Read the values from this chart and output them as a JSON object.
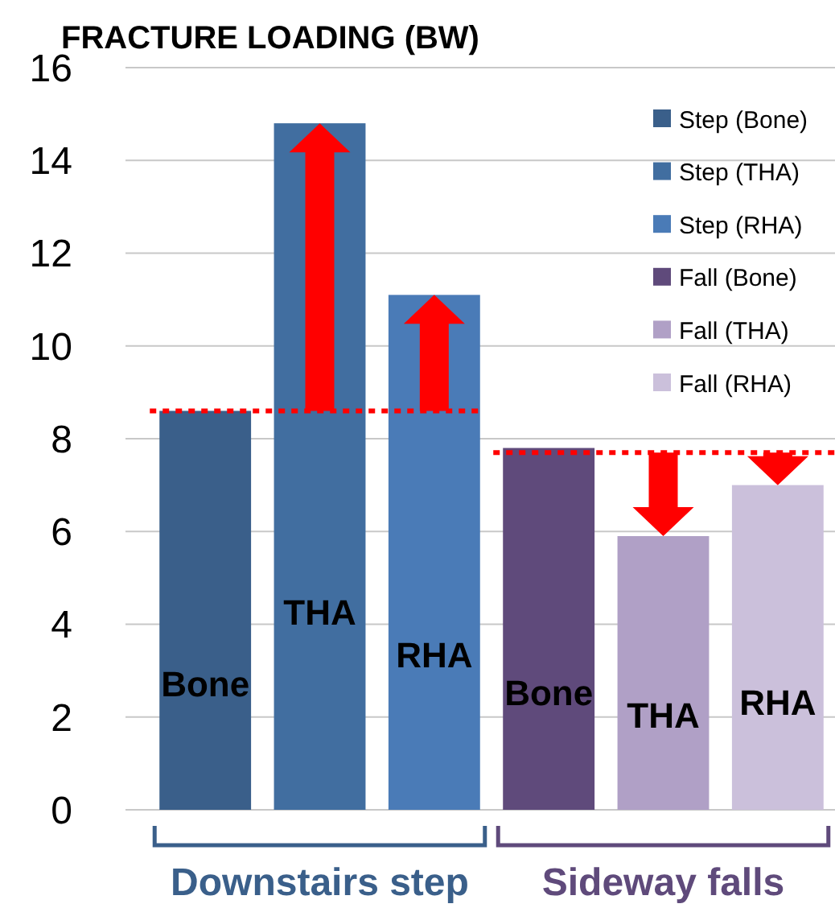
{
  "chart_data": {
    "type": "bar",
    "title": "FRACTURE LOADING (BW)",
    "categories": [
      "Bone",
      "THA",
      "RHA",
      "Bone",
      "THA",
      "RHA"
    ],
    "series": [
      {
        "name": "Step (Bone)",
        "color": "#3a5f8a",
        "values": [
          8.6,
          null,
          null,
          null,
          null,
          null
        ]
      },
      {
        "name": "Step (THA)",
        "color": "#416ea0",
        "values": [
          null,
          14.8,
          null,
          null,
          null,
          null
        ]
      },
      {
        "name": "Step (RHA)",
        "color": "#4a7bb7",
        "values": [
          null,
          null,
          11.1,
          null,
          null,
          null
        ]
      },
      {
        "name": "Fall (Bone)",
        "color": "#5f4a7b",
        "values": [
          null,
          null,
          null,
          7.8,
          null,
          null
        ]
      },
      {
        "name": "Fall (THA)",
        "color": "#b0a0c6",
        "values": [
          null,
          null,
          null,
          null,
          5.9,
          null
        ]
      },
      {
        "name": "Fall (RHA)",
        "color": "#cbc0db",
        "values": [
          null,
          null,
          null,
          null,
          null,
          7.0
        ]
      }
    ],
    "ylim": [
      0,
      16
    ],
    "yticks": [
      0,
      2,
      4,
      6,
      8,
      10,
      12,
      14,
      16
    ],
    "grid": "y",
    "legend": "top right",
    "ref_lines": [
      {
        "axis": "y",
        "value": 8.6,
        "color": "#ff0000",
        "line_style": "dotted"
      },
      {
        "axis": "y",
        "value": 7.7,
        "color": "#ff0000",
        "line_style": "dotted"
      }
    ],
    "annotations": [
      "Downstairs step",
      "Sideway falls"
    ]
  }
}
